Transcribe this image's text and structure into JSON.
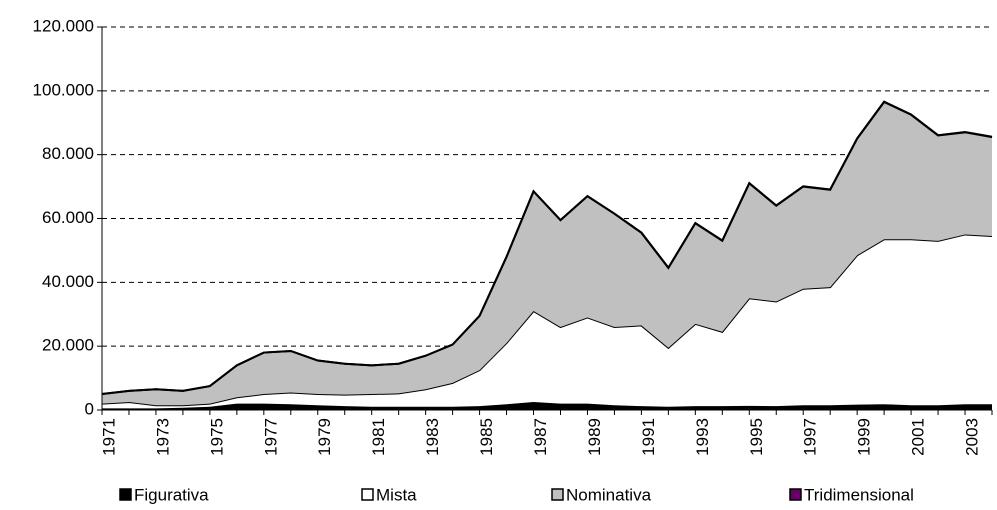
{
  "chart_data": {
    "type": "stacked-area",
    "categories": [
      "1971",
      null,
      "1973",
      null,
      "1975",
      null,
      "1977",
      null,
      "1979",
      null,
      "1981",
      null,
      "1983",
      null,
      "1985",
      null,
      "1987",
      null,
      "1989",
      null,
      "1991",
      null,
      "1993",
      null,
      "1995",
      null,
      "1997",
      null,
      "1999",
      null,
      "2001",
      null,
      "2003",
      null
    ],
    "series": [
      {
        "name": "Figurativa",
        "color": "#000000",
        "values": [
          500,
          500,
          500,
          700,
          1000,
          2000,
          2000,
          1800,
          1500,
          1200,
          1000,
          1000,
          1000,
          1000,
          1200,
          1800,
          2500,
          2000,
          2000,
          1500,
          1200,
          1000,
          1200,
          1200,
          1300,
          1200,
          1500,
          1500,
          1700,
          1800,
          1500,
          1500,
          1800,
          1800
        ]
      },
      {
        "name": "Mista",
        "color": "#ffffff",
        "values": [
          1500,
          2000,
          1000,
          800,
          1000,
          2000,
          3000,
          3700,
          3500,
          3600,
          4000,
          4200,
          5500,
          7500,
          11300,
          19200,
          28500,
          24000,
          27000,
          24500,
          25300,
          18500,
          25800,
          23300,
          33700,
          32800,
          36500,
          37000,
          46800,
          51700,
          52000,
          51500,
          53200,
          52700
        ]
      },
      {
        "name": "Nominativa",
        "color": "#c0c0c0",
        "values": [
          3000,
          3500,
          5000,
          4500,
          5500,
          10000,
          13000,
          13000,
          10500,
          9700,
          9000,
          9300,
          10500,
          12000,
          17000,
          27000,
          37500,
          33500,
          38000,
          35500,
          29000,
          25000,
          31500,
          28500,
          36000,
          30000,
          32000,
          30500,
          36500,
          43000,
          39000,
          33000,
          32000,
          31000
        ]
      },
      {
        "name": "Tridimensional",
        "color": "#660066",
        "values": [
          0,
          0,
          0,
          0,
          0,
          0,
          0,
          0,
          0,
          0,
          0,
          0,
          0,
          0,
          0,
          0,
          0,
          0,
          0,
          0,
          100,
          100,
          100,
          100,
          100,
          100,
          100,
          100,
          100,
          100,
          100,
          100,
          100,
          100
        ]
      }
    ],
    "ylim": [
      0,
      120000
    ],
    "yticks": [
      0,
      {
        "value": 20000,
        "label": "20.000"
      },
      {
        "value": 40000,
        "label": "40.000"
      },
      {
        "value": 60000,
        "label": "60.000"
      },
      {
        "value": 80000,
        "label": "80.000"
      },
      {
        "value": 100000,
        "label": "100.000"
      },
      {
        "value": 120000,
        "label": "120.000"
      }
    ],
    "grid": true
  }
}
